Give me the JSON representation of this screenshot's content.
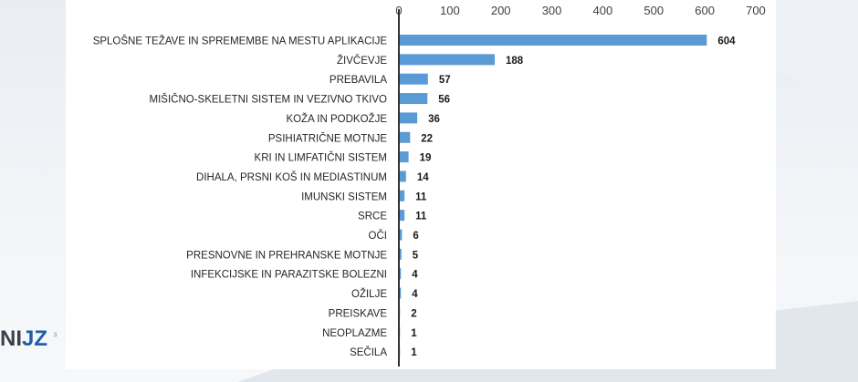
{
  "logo": {
    "part1": "NI",
    "part2": "JZ",
    "part3": "³"
  },
  "chart_data": {
    "type": "bar",
    "orientation": "horizontal",
    "categories": [
      "SPLOŠNE TEŽAVE IN SPREMEMBE NA MESTU APLIKACIJE",
      "ŽIVČEVJE",
      "PREBAVILA",
      "MIŠIČNO-SKELETNI SISTEM IN VEZIVNO TKIVO",
      "KOŽA IN PODKOŽJE",
      "PSIHIATRIČNE MOTNJE",
      "KRI IN LIMFATIČNI SISTEM",
      "DIHALA, PRSNI KOŠ IN MEDIASTINUM",
      "IMUNSKI SISTEM",
      "SRCE",
      "OČI",
      "PRESNOVNE IN PREHRANSKE MOTNJE",
      "INFEKCIJSKE IN PARAZITSKE BOLEZNI",
      "OŽILJE",
      "PREISKAVE",
      "NEOPLAZME",
      "SEČILA"
    ],
    "values": [
      604,
      188,
      57,
      56,
      36,
      22,
      19,
      14,
      11,
      11,
      6,
      5,
      4,
      4,
      2,
      1,
      1
    ],
    "xlim": [
      0,
      700
    ],
    "xticks": [
      "0",
      "100",
      "200",
      "300",
      "400",
      "500",
      "600",
      "700"
    ],
    "x_axis_position": "top",
    "grid": false,
    "bar_color": "#5b9bd5",
    "axis_color": "#333333",
    "title": "",
    "xlabel": "",
    "ylabel": ""
  }
}
